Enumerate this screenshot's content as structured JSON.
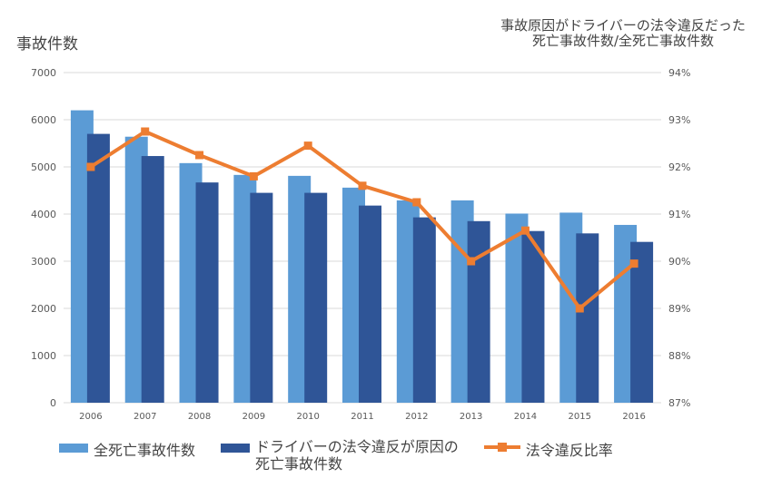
{
  "chart_data": {
    "type": "bar+line",
    "categories": [
      "2006",
      "2007",
      "2008",
      "2009",
      "2010",
      "2011",
      "2012",
      "2013",
      "2014",
      "2015",
      "2016"
    ],
    "series": [
      {
        "name": "全死亡事故件数",
        "type": "bar",
        "axis": "left",
        "color": "#5b9bd5",
        "values": [
          6200,
          5640,
          5080,
          4830,
          4810,
          4560,
          4290,
          4290,
          4010,
          4030,
          3770
        ]
      },
      {
        "name": "ドライバーの法令違反が原因の死亡事故件数",
        "type": "bar",
        "axis": "left",
        "color": "#2f5597",
        "values": [
          5700,
          5230,
          4670,
          4450,
          4450,
          4180,
          3930,
          3850,
          3640,
          3590,
          3410
        ]
      },
      {
        "name": "法令違反比率",
        "type": "line",
        "axis": "right",
        "color": "#ed7d31",
        "values": [
          92.0,
          92.75,
          92.25,
          91.8,
          92.45,
          91.6,
          91.25,
          90.0,
          90.65,
          89.0,
          89.95
        ]
      }
    ],
    "left_axis": {
      "label": "事故件数",
      "ylim": [
        0,
        7000
      ],
      "ticks": [
        "0",
        "1000",
        "2000",
        "3000",
        "4000",
        "5000",
        "6000",
        "7000"
      ]
    },
    "right_axis": {
      "label_lines": [
        "事故原因がドライバーの法令違反だった",
        "死亡事故件数/全死亡事故件数"
      ],
      "ylim": [
        87,
        94
      ],
      "ticks": [
        "87%",
        "88%",
        "89%",
        "90%",
        "91%",
        "92%",
        "93%",
        "94%"
      ]
    },
    "grid": true,
    "legend": {
      "placement": "bottom",
      "items": [
        "全死亡事故件数",
        "ドライバーの法令違反が原因の",
        "死亡事故件数",
        "法令違反比率"
      ]
    }
  }
}
